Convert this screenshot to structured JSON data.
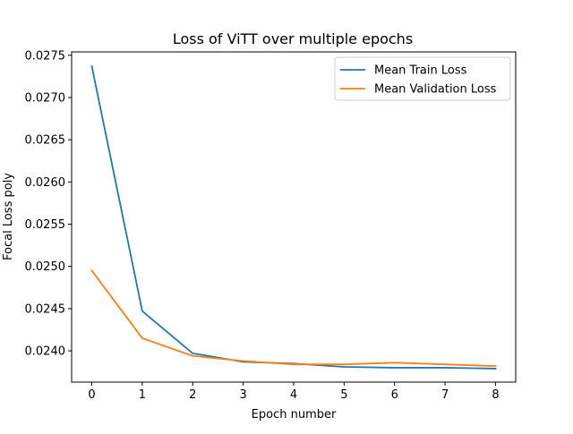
{
  "chart_data": {
    "type": "line",
    "title": "Loss of ViTT over multiple epochs",
    "xlabel": "Epoch number",
    "ylabel": "Focal Loss poly",
    "x": [
      0,
      1,
      2,
      3,
      4,
      5,
      6,
      7,
      8
    ],
    "xlim": [
      -0.4,
      8.4
    ],
    "ylim": [
      0.02363,
      0.02754
    ],
    "xticks": [
      0,
      1,
      2,
      3,
      4,
      5,
      6,
      7,
      8
    ],
    "yticks": [
      0.024,
      0.0245,
      0.025,
      0.0255,
      0.026,
      0.0265,
      0.027,
      0.0275
    ],
    "ytick_labels": [
      "0.0240",
      "0.0245",
      "0.0250",
      "0.0255",
      "0.0260",
      "0.0265",
      "0.0270",
      "0.0275"
    ],
    "grid": false,
    "legend_position": "top-right",
    "series": [
      {
        "name": "Mean Train Loss",
        "color": "#1f77b4",
        "values": [
          0.02737,
          0.02447,
          0.02397,
          0.02387,
          0.02385,
          0.02381,
          0.0238,
          0.0238,
          0.02379
        ]
      },
      {
        "name": "Mean Validation Loss",
        "color": "#ff7f0e",
        "values": [
          0.02495,
          0.02415,
          0.02394,
          0.02388,
          0.02384,
          0.02384,
          0.02386,
          0.02384,
          0.02382
        ]
      }
    ]
  }
}
